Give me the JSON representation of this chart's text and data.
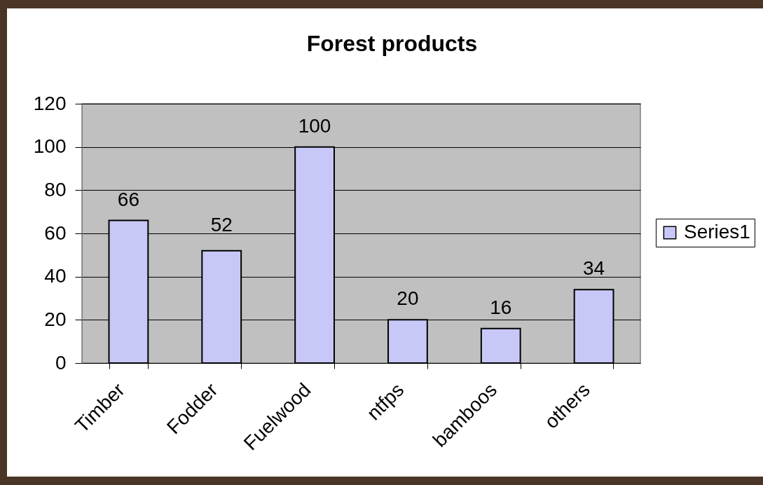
{
  "chart_data": {
    "type": "bar",
    "title": "Forest products",
    "categories": [
      "Timber",
      "Fodder",
      "Fuelwood",
      "ntfps",
      "bamboos",
      "others"
    ],
    "series": [
      {
        "name": "Series1",
        "color": "#c8c8f8",
        "values": [
          66,
          52,
          100,
          20,
          16,
          34
        ]
      }
    ],
    "ylim": [
      0,
      120
    ],
    "yticks": [
      0,
      20,
      40,
      60,
      80,
      100,
      120
    ],
    "grid": "y",
    "legend": "right",
    "data_labels": true
  }
}
